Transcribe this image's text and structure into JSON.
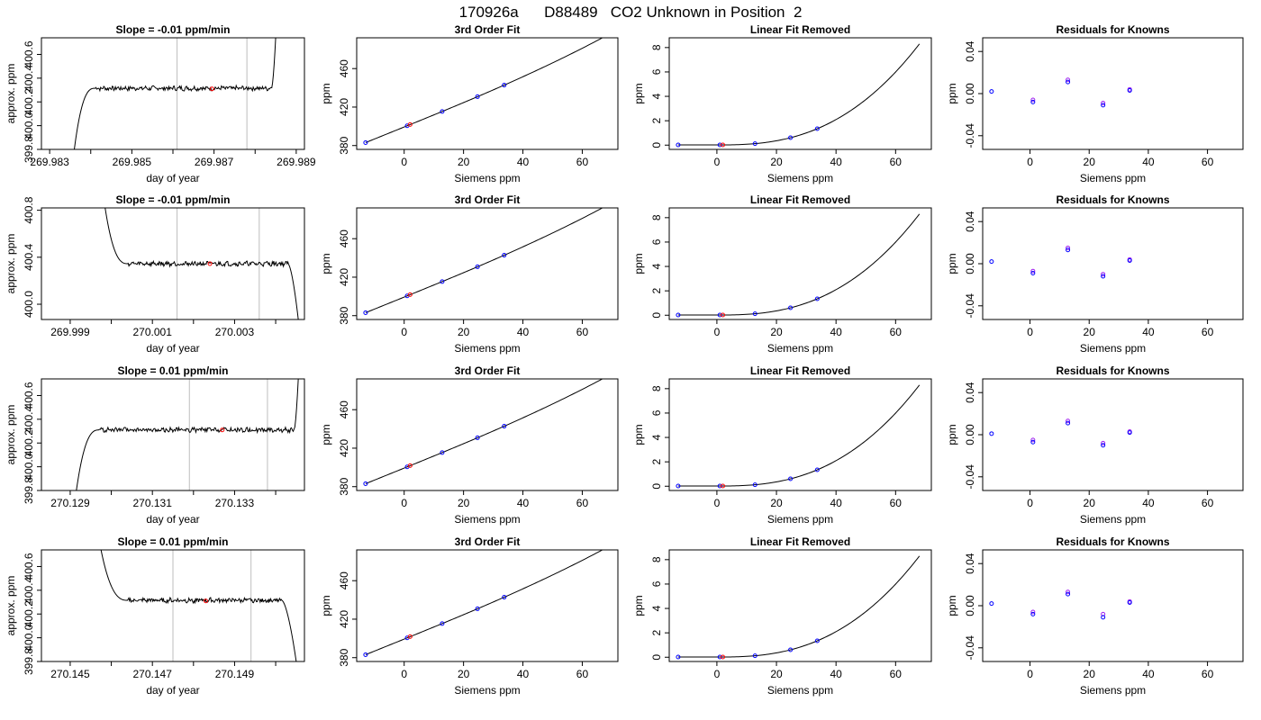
{
  "page": {
    "main_title": "170926a      D88489   CO2 Unknown in Position  2"
  },
  "colors": {
    "ink": "#000000",
    "grid_vline": "#bebebe",
    "known_marker": "#0000ff",
    "unknown_marker": "#ff0000",
    "alt_marker": "#a020f0"
  },
  "chart_data": [
    {
      "type": "line",
      "row": 1,
      "col": 1,
      "title": "Slope =  -0.01  ppm/min",
      "xlabel": "day of year",
      "ylabel": "approx. ppm",
      "xlim": [
        269.9828,
        269.9892
      ],
      "ylim": [
        399.8,
        400.74
      ],
      "xticks": [
        269.983,
        269.984,
        269.985,
        269.986,
        269.987,
        269.988,
        269.989
      ],
      "xtick_labels": [
        "269.983",
        "",
        "269.985",
        "",
        "269.987",
        "",
        "269.989"
      ],
      "yticks": [
        399.8,
        400.0,
        400.2,
        400.4,
        400.6
      ],
      "ytick_labels": [
        "399.8",
        "400.0",
        "400.2",
        "400.4",
        "400.6"
      ],
      "vlines": [
        269.9861,
        269.9878
      ],
      "trace": {
        "start": [
          269.9836,
          399.8
        ],
        "rise_end": 269.9841,
        "plateau": 400.315,
        "plateau_end": 269.9884,
        "end": [
          269.9885,
          400.74
        ]
      },
      "marker": {
        "x": 269.98695,
        "y": 400.31
      }
    },
    {
      "type": "scatter",
      "row": 1,
      "col": 2,
      "title": "3rd Order Fit",
      "xlabel": "Siemens ppm",
      "ylabel": "ppm",
      "xlim": [
        -16,
        72
      ],
      "ylim": [
        376,
        492
      ],
      "xticks": [
        0,
        20,
        40,
        60
      ],
      "xtick_labels": [
        "0",
        "20",
        "40",
        "60"
      ],
      "yticks": [
        380,
        420,
        460
      ],
      "ytick_labels": [
        "380",
        "420",
        "460"
      ],
      "curve": {
        "kind": "fit",
        "from": -13,
        "to": 68,
        "c0": 399.3,
        "c1": 1.25,
        "c2": 0.0004,
        "c3": 2.5e-05
      },
      "known_x": [
        -13,
        1,
        12.8,
        24.7,
        33.7
      ],
      "unknown_x": [
        2.0
      ]
    },
    {
      "type": "scatter",
      "row": 1,
      "col": 3,
      "title": "Linear Fit Removed",
      "xlabel": "Siemens ppm",
      "ylabel": "ppm",
      "xlim": [
        -16,
        72
      ],
      "ylim": [
        -0.35,
        8.8
      ],
      "xticks": [
        0,
        20,
        40,
        60
      ],
      "xtick_labels": [
        "0",
        "20",
        "40",
        "60"
      ],
      "yticks": [
        0,
        2,
        4,
        6,
        8
      ],
      "ytick_labels": [
        "0",
        "2",
        "4",
        "6",
        "8"
      ],
      "curve": {
        "kind": "residual",
        "from": -13,
        "to": 68,
        "ymax": 8.3
      },
      "known_x": [
        -13,
        1,
        12.8,
        24.7,
        33.7
      ],
      "unknown_x": [
        2.0
      ]
    },
    {
      "type": "scatter",
      "row": 1,
      "col": 4,
      "title": "Residuals for Knowns",
      "xlabel": "Siemens ppm",
      "ylabel": "ppm",
      "xlim": [
        -16,
        72
      ],
      "ylim": [
        -0.053,
        0.053
      ],
      "xticks": [
        0,
        20,
        40,
        60
      ],
      "xtick_labels": [
        "0",
        "20",
        "40",
        "60"
      ],
      "yticks": [
        -0.04,
        0.0,
        0.04
      ],
      "ytick_labels": [
        "-0.04",
        "0.00",
        "0.04"
      ],
      "points": [
        {
          "x": -13,
          "y": 0.002
        },
        {
          "x": 1,
          "y": -0.006
        },
        {
          "x": 1,
          "y": -0.008
        },
        {
          "x": 12.8,
          "y": 0.013
        },
        {
          "x": 12.8,
          "y": 0.011
        },
        {
          "x": 24.7,
          "y": -0.009
        },
        {
          "x": 24.7,
          "y": -0.011
        },
        {
          "x": 33.7,
          "y": 0.004
        },
        {
          "x": 33.7,
          "y": 0.003
        }
      ]
    },
    {
      "type": "line",
      "row": 2,
      "col": 1,
      "title": "Slope =  -0.01  ppm/min",
      "xlabel": "day of year",
      "ylabel": "approx. ppm",
      "xlim": [
        269.9983,
        270.0047
      ],
      "ylim": [
        399.87,
        400.82
      ],
      "xticks": [
        269.999,
        270.0,
        270.001,
        270.002,
        270.003,
        270.004
      ],
      "xtick_labels": [
        "269.999",
        "",
        "270.001",
        "",
        "270.003",
        ""
      ],
      "yticks": [
        400.0,
        400.4,
        400.8
      ],
      "ytick_labels": [
        "400.0",
        "400.4",
        "400.8"
      ],
      "vlines": [
        270.0016,
        270.0036
      ],
      "trace": {
        "start": [
          269.99985,
          400.82
        ],
        "rise_end": 270.0004,
        "plateau": 400.345,
        "plateau_end": 270.0043,
        "end": [
          270.00455,
          399.87
        ]
      },
      "marker": {
        "x": 270.0024,
        "y": 400.345
      }
    },
    {
      "type": "scatter",
      "row": 2,
      "col": 2,
      "title": "3rd Order Fit",
      "xlabel": "Siemens ppm",
      "ylabel": "ppm",
      "xlim": [
        -16,
        72
      ],
      "ylim": [
        376,
        492
      ],
      "xticks": [
        0,
        20,
        40,
        60
      ],
      "xtick_labels": [
        "0",
        "20",
        "40",
        "60"
      ],
      "yticks": [
        380,
        420,
        460
      ],
      "ytick_labels": [
        "380",
        "420",
        "460"
      ],
      "curve": {
        "kind": "fit",
        "from": -13,
        "to": 68,
        "c0": 399.3,
        "c1": 1.25,
        "c2": 0.0004,
        "c3": 2.5e-05
      },
      "known_x": [
        -13,
        1,
        12.8,
        24.7,
        33.7
      ],
      "unknown_x": [
        2.0
      ]
    },
    {
      "type": "scatter",
      "row": 2,
      "col": 3,
      "title": "Linear Fit Removed",
      "xlabel": "Siemens ppm",
      "ylabel": "ppm",
      "xlim": [
        -16,
        72
      ],
      "ylim": [
        -0.35,
        8.8
      ],
      "xticks": [
        0,
        20,
        40,
        60
      ],
      "xtick_labels": [
        "0",
        "20",
        "40",
        "60"
      ],
      "yticks": [
        0,
        2,
        4,
        6,
        8
      ],
      "ytick_labels": [
        "0",
        "2",
        "4",
        "6",
        "8"
      ],
      "curve": {
        "kind": "residual",
        "from": -13,
        "to": 68,
        "ymax": 8.3
      },
      "known_x": [
        -13,
        1,
        12.8,
        24.7,
        33.7
      ],
      "unknown_x": [
        2.0
      ]
    },
    {
      "type": "scatter",
      "row": 2,
      "col": 4,
      "title": "Residuals for Knowns",
      "xlabel": "Siemens ppm",
      "ylabel": "ppm",
      "xlim": [
        -16,
        72
      ],
      "ylim": [
        -0.053,
        0.053
      ],
      "xticks": [
        0,
        20,
        40,
        60
      ],
      "xtick_labels": [
        "0",
        "20",
        "40",
        "60"
      ],
      "yticks": [
        -0.04,
        0.0,
        0.04
      ],
      "ytick_labels": [
        "-0.04",
        "0.00",
        "0.04"
      ],
      "points": [
        {
          "x": -13,
          "y": 0.002
        },
        {
          "x": 1,
          "y": -0.007
        },
        {
          "x": 1,
          "y": -0.009
        },
        {
          "x": 12.8,
          "y": 0.015
        },
        {
          "x": 12.8,
          "y": 0.013
        },
        {
          "x": 24.7,
          "y": -0.01
        },
        {
          "x": 24.7,
          "y": -0.012
        },
        {
          "x": 33.7,
          "y": 0.004
        },
        {
          "x": 33.7,
          "y": 0.003
        }
      ]
    },
    {
      "type": "line",
      "row": 3,
      "col": 1,
      "title": "Slope =  0.01  ppm/min",
      "xlabel": "day of year",
      "ylabel": "approx. ppm",
      "xlim": [
        270.1283,
        270.1347
      ],
      "ylim": [
        399.8,
        400.74
      ],
      "xticks": [
        270.129,
        270.13,
        270.131,
        270.132,
        270.133,
        270.134
      ],
      "xtick_labels": [
        "270.129",
        "",
        "270.131",
        "",
        "270.133",
        ""
      ],
      "yticks": [
        399.8,
        400.0,
        400.2,
        400.4,
        400.6
      ],
      "ytick_labels": [
        "399.8",
        "400.0",
        "400.2",
        "400.4",
        "400.6"
      ],
      "vlines": [
        270.1319,
        270.1338
      ],
      "trace": {
        "start": [
          270.12915,
          399.8
        ],
        "rise_end": 270.1297,
        "plateau": 400.31,
        "plateau_end": 270.13445,
        "end": [
          270.13455,
          400.74
        ]
      },
      "marker": {
        "x": 270.1327,
        "y": 400.31
      }
    },
    {
      "type": "scatter",
      "row": 3,
      "col": 2,
      "title": "3rd Order Fit",
      "xlabel": "Siemens ppm",
      "ylabel": "ppm",
      "xlim": [
        -16,
        72
      ],
      "ylim": [
        376,
        492
      ],
      "xticks": [
        0,
        20,
        40,
        60
      ],
      "xtick_labels": [
        "0",
        "20",
        "40",
        "60"
      ],
      "yticks": [
        380,
        420,
        460
      ],
      "ytick_labels": [
        "380",
        "420",
        "460"
      ],
      "curve": {
        "kind": "fit",
        "from": -13,
        "to": 68,
        "c0": 399.3,
        "c1": 1.25,
        "c2": 0.0004,
        "c3": 2.5e-05
      },
      "known_x": [
        -13,
        1,
        12.8,
        24.7,
        33.7
      ],
      "unknown_x": [
        2.0
      ]
    },
    {
      "type": "scatter",
      "row": 3,
      "col": 3,
      "title": "Linear Fit Removed",
      "xlabel": "Siemens ppm",
      "ylabel": "ppm",
      "xlim": [
        -16,
        72
      ],
      "ylim": [
        -0.35,
        8.8
      ],
      "xticks": [
        0,
        20,
        40,
        60
      ],
      "xtick_labels": [
        "0",
        "20",
        "40",
        "60"
      ],
      "yticks": [
        0,
        2,
        4,
        6,
        8
      ],
      "ytick_labels": [
        "0",
        "2",
        "4",
        "6",
        "8"
      ],
      "curve": {
        "kind": "residual",
        "from": -13,
        "to": 68,
        "ymax": 8.3
      },
      "known_x": [
        -13,
        1,
        12.8,
        24.7,
        33.7
      ],
      "unknown_x": [
        2.0
      ]
    },
    {
      "type": "scatter",
      "row": 3,
      "col": 4,
      "title": "Residuals for Knowns",
      "xlabel": "Siemens ppm",
      "ylabel": "ppm",
      "xlim": [
        -16,
        72
      ],
      "ylim": [
        -0.053,
        0.053
      ],
      "xticks": [
        0,
        20,
        40,
        60
      ],
      "xtick_labels": [
        "0",
        "20",
        "40",
        "60"
      ],
      "yticks": [
        -0.04,
        0.0,
        0.04
      ],
      "ytick_labels": [
        "-0.04",
        "0.00",
        "0.04"
      ],
      "points": [
        {
          "x": -13,
          "y": 0.001
        },
        {
          "x": 1,
          "y": -0.005
        },
        {
          "x": 1,
          "y": -0.007
        },
        {
          "x": 12.8,
          "y": 0.013
        },
        {
          "x": 12.8,
          "y": 0.011
        },
        {
          "x": 24.7,
          "y": -0.008
        },
        {
          "x": 24.7,
          "y": -0.01
        },
        {
          "x": 33.7,
          "y": 0.003
        },
        {
          "x": 33.7,
          "y": 0.002
        }
      ]
    },
    {
      "type": "line",
      "row": 4,
      "col": 1,
      "title": "Slope =  0.01  ppm/min",
      "xlabel": "day of year",
      "ylabel": "approx. ppm",
      "xlim": [
        270.1443,
        270.1507
      ],
      "ylim": [
        399.8,
        400.74
      ],
      "xticks": [
        270.145,
        270.146,
        270.147,
        270.148,
        270.149,
        270.15
      ],
      "xtick_labels": [
        "270.145",
        "",
        "270.147",
        "",
        "270.149",
        ""
      ],
      "yticks": [
        399.8,
        400.0,
        400.2,
        400.4,
        400.6
      ],
      "ytick_labels": [
        "399.8",
        "400.0",
        "400.2",
        "400.4",
        "400.6"
      ],
      "vlines": [
        270.1475,
        270.1494
      ],
      "trace": {
        "start": [
          270.14575,
          400.74
        ],
        "rise_end": 270.1464,
        "plateau": 400.315,
        "plateau_end": 270.15015,
        "end": [
          270.1505,
          399.8
        ]
      },
      "marker": {
        "x": 270.1483,
        "y": 400.31
      }
    },
    {
      "type": "scatter",
      "row": 4,
      "col": 2,
      "title": "3rd Order Fit",
      "xlabel": "Siemens ppm",
      "ylabel": "ppm",
      "xlim": [
        -16,
        72
      ],
      "ylim": [
        376,
        492
      ],
      "xticks": [
        0,
        20,
        40,
        60
      ],
      "xtick_labels": [
        "0",
        "20",
        "40",
        "60"
      ],
      "yticks": [
        380,
        420,
        460
      ],
      "ytick_labels": [
        "380",
        "420",
        "460"
      ],
      "curve": {
        "kind": "fit",
        "from": -13,
        "to": 68,
        "c0": 399.3,
        "c1": 1.25,
        "c2": 0.0004,
        "c3": 2.5e-05
      },
      "known_x": [
        -13,
        1,
        12.8,
        24.7,
        33.7
      ],
      "unknown_x": [
        2.0
      ]
    },
    {
      "type": "scatter",
      "row": 4,
      "col": 3,
      "title": "Linear Fit Removed",
      "xlabel": "Siemens ppm",
      "ylabel": "ppm",
      "xlim": [
        -16,
        72
      ],
      "ylim": [
        -0.35,
        8.8
      ],
      "xticks": [
        0,
        20,
        40,
        60
      ],
      "xtick_labels": [
        "0",
        "20",
        "40",
        "60"
      ],
      "yticks": [
        0,
        2,
        4,
        6,
        8
      ],
      "ytick_labels": [
        "0",
        "2",
        "4",
        "6",
        "8"
      ],
      "curve": {
        "kind": "residual",
        "from": -13,
        "to": 68,
        "ymax": 8.3
      },
      "known_x": [
        -13,
        1,
        12.8,
        24.7,
        33.7
      ],
      "unknown_x": [
        2.0
      ]
    },
    {
      "type": "scatter",
      "row": 4,
      "col": 4,
      "title": "Residuals for Knowns",
      "xlabel": "Siemens ppm",
      "ylabel": "ppm",
      "xlim": [
        -16,
        72
      ],
      "ylim": [
        -0.053,
        0.053
      ],
      "xticks": [
        0,
        20,
        40,
        60
      ],
      "xtick_labels": [
        "0",
        "20",
        "40",
        "60"
      ],
      "yticks": [
        -0.04,
        0.0,
        0.04
      ],
      "ytick_labels": [
        "-0.04",
        "0.00",
        "0.04"
      ],
      "points": [
        {
          "x": -13,
          "y": 0.002
        },
        {
          "x": 1,
          "y": -0.006
        },
        {
          "x": 1,
          "y": -0.008
        },
        {
          "x": 12.8,
          "y": 0.013
        },
        {
          "x": 12.8,
          "y": 0.011
        },
        {
          "x": 24.7,
          "y": -0.008
        },
        {
          "x": 24.7,
          "y": -0.011
        },
        {
          "x": 33.7,
          "y": 0.004
        },
        {
          "x": 33.7,
          "y": 0.003
        }
      ]
    }
  ]
}
